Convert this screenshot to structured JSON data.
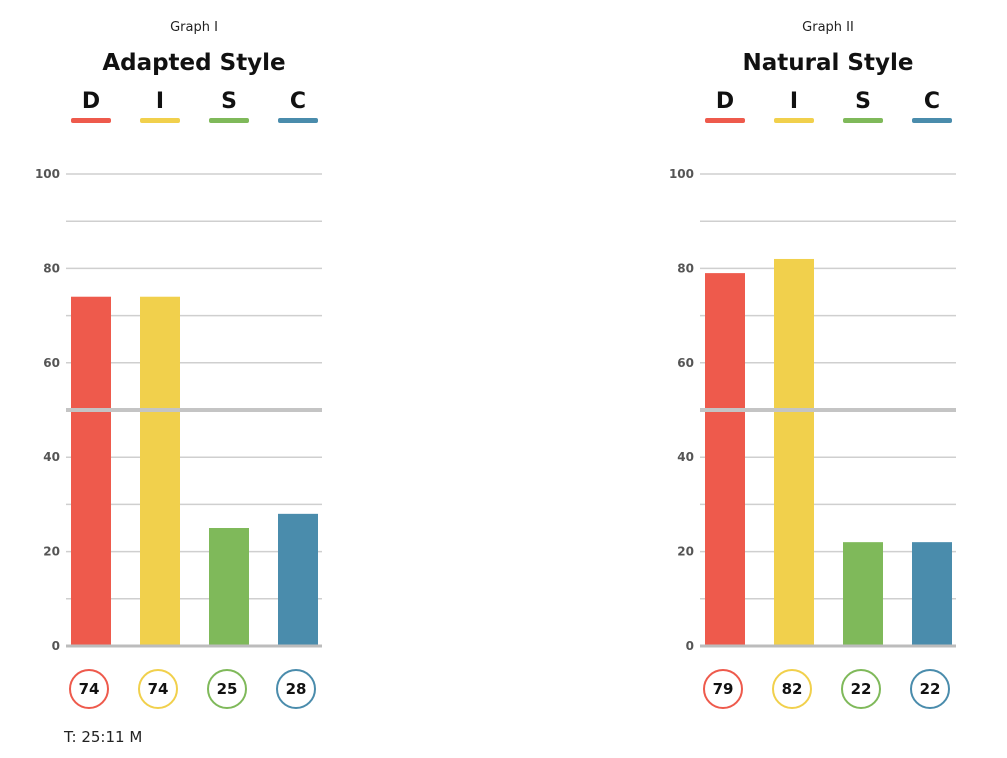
{
  "colors": {
    "D": "#ee5a4c",
    "I": "#f1d04c",
    "S": "#7fb95a",
    "C": "#4a8cac"
  },
  "chart_data": [
    {
      "type": "bar",
      "subtitle": "Graph I",
      "title": "Adapted Style",
      "categories": [
        "D",
        "I",
        "S",
        "C"
      ],
      "values": [
        74,
        74,
        25,
        28
      ],
      "value_labels": [
        "74",
        "74",
        "25",
        "28"
      ],
      "ylim": [
        0,
        100
      ],
      "y_ticks": [
        0,
        20,
        40,
        60,
        80,
        100
      ],
      "y_tick_labels": [
        "0",
        "20",
        "40",
        "60",
        "80",
        "100"
      ],
      "grid_step": 10,
      "midline": 50,
      "grid": true
    },
    {
      "type": "bar",
      "subtitle": "Graph II",
      "title": "Natural Style",
      "categories": [
        "D",
        "I",
        "S",
        "C"
      ],
      "values": [
        79,
        82,
        22,
        22
      ],
      "value_labels": [
        "79",
        "82",
        "22",
        "22"
      ],
      "ylim": [
        0,
        100
      ],
      "y_ticks": [
        0,
        20,
        40,
        60,
        80,
        100
      ],
      "y_tick_labels": [
        "0",
        "20",
        "40",
        "60",
        "80",
        "100"
      ],
      "grid_step": 10,
      "midline": 50,
      "grid": true
    }
  ],
  "footnote": "T: 25:11 M"
}
